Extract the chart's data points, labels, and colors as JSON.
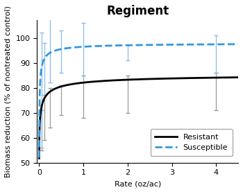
{
  "title": "Regiment",
  "xlabel": "Rate (oz/ac)",
  "ylabel": "Biomass reduction (% of nontreated control)",
  "xlim": [
    -0.05,
    4.5
  ],
  "ylim": [
    50,
    107
  ],
  "yticks": [
    50,
    60,
    70,
    80,
    90,
    100
  ],
  "xticks": [
    0,
    1,
    2,
    3,
    4
  ],
  "background_color": "#ffffff",
  "resistant": {
    "label": "Resistant",
    "color": "#000000",
    "linestyle": "-",
    "linewidth": 2.0,
    "upper": 86.0,
    "lower": 50.0,
    "b": 0.55,
    "ED50": 0.022
  },
  "susceptible": {
    "label": "Susceptible",
    "color": "#3399dd",
    "linestyle": "--",
    "linewidth": 2.0,
    "upper": 98.0,
    "lower": 50.0,
    "b": 0.7,
    "ED50": 0.008
  },
  "error_bars_resistant": {
    "x": [
      0.0625,
      0.125,
      0.25,
      0.5,
      1.0,
      2.0,
      4.0
    ],
    "y": [
      63,
      68,
      72,
      75,
      77,
      80,
      83
    ],
    "y_lower": [
      8,
      9,
      8,
      6,
      9,
      10,
      12
    ],
    "y_upper": [
      8,
      9,
      8,
      6,
      8,
      5,
      3
    ]
  },
  "error_bars_susceptible": {
    "x": [
      0.0625,
      0.125,
      0.25,
      0.5,
      1.0,
      2.0,
      4.0
    ],
    "y": [
      80,
      90,
      91,
      93,
      94,
      95,
      96
    ],
    "y_lower": [
      24,
      13,
      9,
      7,
      12,
      4,
      10
    ],
    "y_upper": [
      22,
      8,
      17,
      10,
      12,
      2,
      5
    ]
  },
  "title_fontsize": 12,
  "label_fontsize": 8,
  "tick_fontsize": 8
}
